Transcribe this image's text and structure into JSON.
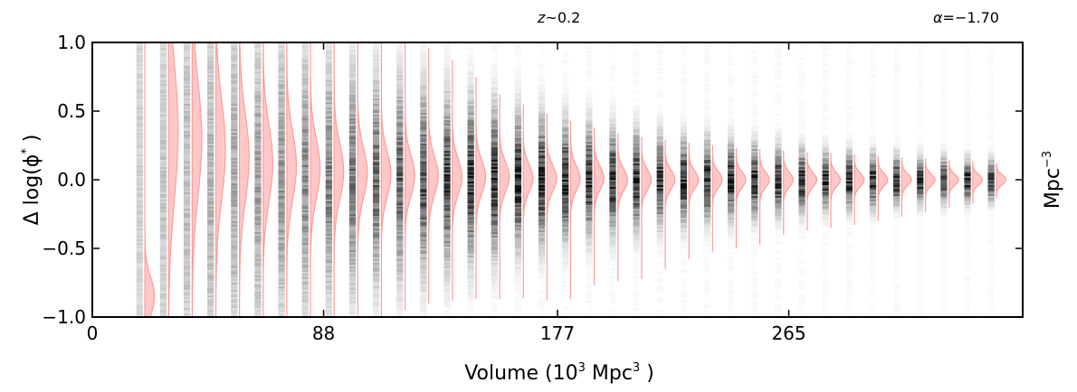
{
  "chart_data": {
    "type": "violin",
    "annotations": {
      "z_symbol": "z",
      "z_text": "~0.2",
      "alpha_symbol": "α",
      "alpha_text": "=−1.70"
    },
    "xlabel": "Volume (10",
    "xlabel_sup": "3",
    "xlabel_mid": "Mpc",
    "xlabel_sup2": "3",
    "xlabel_end": ")",
    "ylabel": "Δ log(ϕ",
    "ylabel_sup": "*",
    "ylabel_end": ")",
    "right_label": "Mpc",
    "right_label_sup": "−3",
    "xlim": [
      0,
      354
    ],
    "ylim": [
      -1.0,
      1.0
    ],
    "xticks": [
      {
        "value": 0,
        "label": "0"
      },
      {
        "value": 88,
        "label": "88"
      },
      {
        "value": 177,
        "label": "177"
      },
      {
        "value": 265,
        "label": "265"
      }
    ],
    "yticks": [
      {
        "value": 1.0,
        "label": "1.0"
      },
      {
        "value": 0.5,
        "label": "0.5"
      },
      {
        "value": 0.0,
        "label": "0.0"
      },
      {
        "value": -0.5,
        "label": "−0.5"
      },
      {
        "value": -1.0,
        "label": "−1.0"
      }
    ],
    "grayscale_series": {
      "x": [
        18,
        27,
        36,
        45,
        54,
        63,
        72,
        81,
        90,
        99,
        108,
        117,
        126,
        135,
        144,
        153,
        162,
        171,
        180,
        189,
        198,
        207,
        216,
        225,
        234,
        243,
        252,
        261,
        270,
        279,
        288,
        297,
        306,
        315,
        324,
        333,
        342
      ],
      "spread": [
        1.55,
        1.3,
        1.1,
        0.95,
        0.85,
        0.76,
        0.69,
        0.63,
        0.58,
        0.53,
        0.49,
        0.45,
        0.42,
        0.39,
        0.36,
        0.33,
        0.3,
        0.28,
        0.26,
        0.245,
        0.23,
        0.215,
        0.2,
        0.19,
        0.18,
        0.17,
        0.16,
        0.15,
        0.14,
        0.13,
        0.125,
        0.12,
        0.11,
        0.105,
        0.1,
        0.095,
        0.09
      ]
    },
    "pink_series": {
      "x": [
        20,
        29,
        38,
        47,
        56,
        65,
        74,
        83,
        92,
        101,
        110,
        119,
        128,
        137,
        146,
        155,
        164,
        173,
        182,
        191,
        200,
        209,
        218,
        227,
        236,
        245,
        254,
        263,
        272,
        281,
        290,
        299,
        308,
        317,
        326,
        335,
        344
      ],
      "center": [
        -0.85,
        0.35,
        0.3,
        0.22,
        0.16,
        0.12,
        0.1,
        0.08,
        0.06,
        0.05,
        0.04,
        0.03,
        0.03,
        0.02,
        0.02,
        0.02,
        0.01,
        0.01,
        0.01,
        0.01,
        0.0,
        0.0,
        0.0,
        0.0,
        0.0,
        0.0,
        0.0,
        0.0,
        0.0,
        0.0,
        0.0,
        0.0,
        0.0,
        0.0,
        0.0,
        0.0,
        0.0
      ],
      "sigma": [
        0.14,
        0.5,
        0.42,
        0.36,
        0.32,
        0.28,
        0.25,
        0.22,
        0.2,
        0.18,
        0.165,
        0.15,
        0.14,
        0.13,
        0.12,
        0.11,
        0.1,
        0.095,
        0.09,
        0.085,
        0.08,
        0.075,
        0.07,
        0.065,
        0.06,
        0.058,
        0.056,
        0.054,
        0.052,
        0.05,
        0.048,
        0.046,
        0.044,
        0.042,
        0.04,
        0.038,
        0.036
      ],
      "ymin": [
        -1.0,
        -1.0,
        -1.0,
        -1.0,
        -1.0,
        -1.0,
        -1.0,
        -1.0,
        -1.0,
        -1.0,
        -1.0,
        -0.95,
        -0.9,
        -0.88,
        -0.87,
        -0.87,
        -0.86,
        -0.88,
        -0.87,
        -0.77,
        -0.74,
        -0.72,
        -0.65,
        -0.58,
        -0.53,
        -0.5,
        -0.47,
        -0.4,
        -0.37,
        -0.35,
        -0.33,
        -0.3,
        -0.27,
        -0.24,
        -0.2,
        -0.17,
        -0.13
      ],
      "ymax": [
        1.0,
        1.0,
        1.0,
        1.0,
        1.0,
        1.0,
        1.0,
        1.0,
        1.0,
        1.0,
        1.0,
        1.0,
        0.96,
        0.87,
        0.75,
        0.62,
        0.55,
        0.48,
        0.43,
        0.38,
        0.34,
        0.31,
        0.29,
        0.27,
        0.25,
        0.23,
        0.22,
        0.21,
        0.2,
        0.19,
        0.18,
        0.17,
        0.16,
        0.15,
        0.14,
        0.13,
        0.12
      ]
    },
    "colors": {
      "pink_fill": "#ffb6b6",
      "pink_line": "#ff9b9b",
      "gray": "#000000",
      "axis": "#000000"
    },
    "grid": false
  }
}
